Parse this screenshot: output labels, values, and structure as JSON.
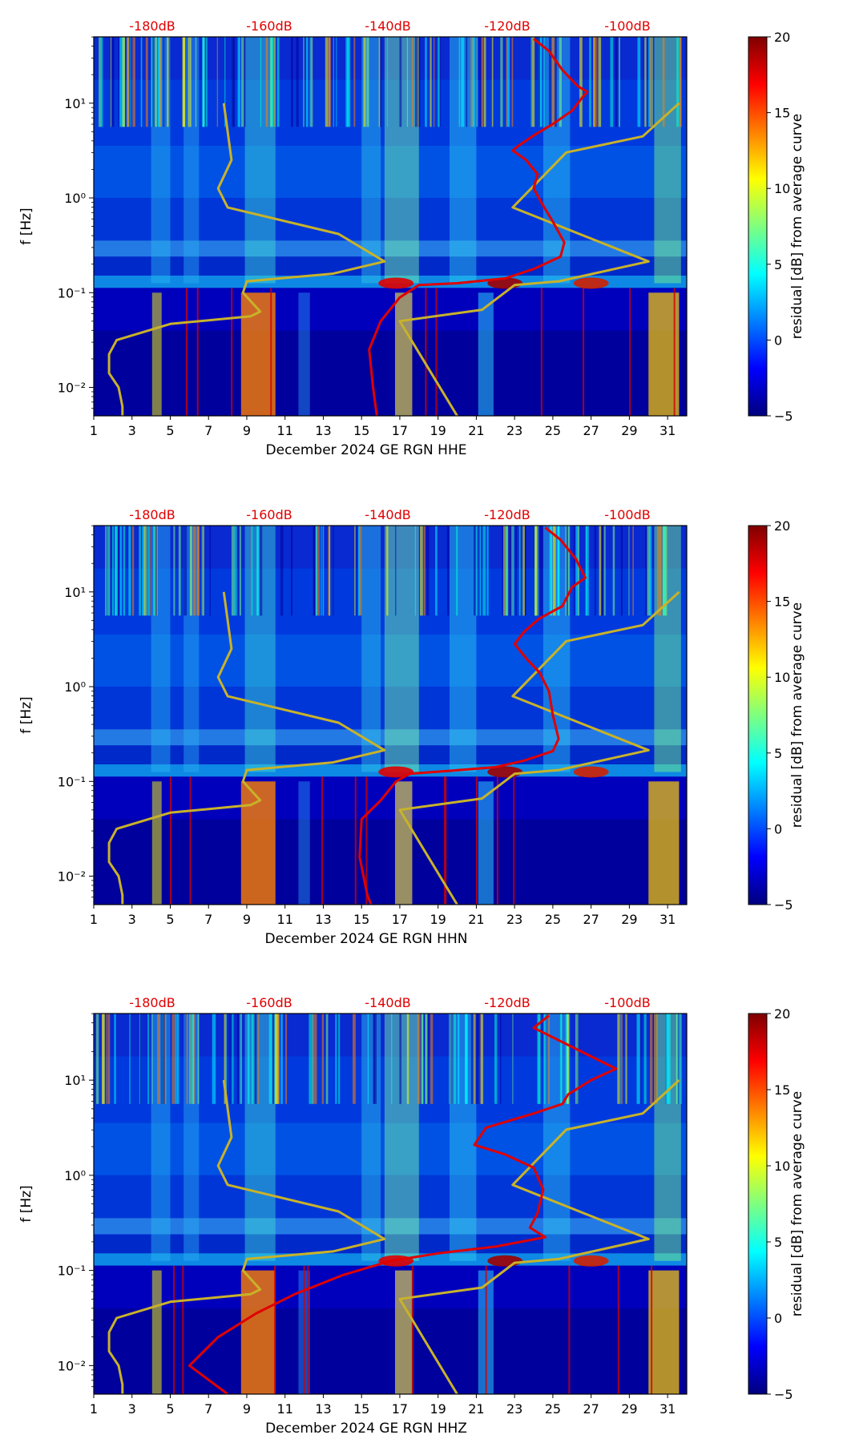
{
  "figure": {
    "colorbar_label": "residual [dB] from average curve",
    "colormap": [
      "#00007f",
      "#0000ff",
      "#007fff",
      "#00ffff",
      "#7fff7f",
      "#ffff00",
      "#ff7f00",
      "#ff0000",
      "#7f0000"
    ]
  },
  "chart_data": [
    {
      "type": "heatmap",
      "title": "",
      "xlabel": "December 2024 GE RGN  HHE",
      "ylabel": "f [Hz]",
      "x_ticks": [
        "1",
        "3",
        "5",
        "7",
        "9",
        "11",
        "13",
        "15",
        "17",
        "19",
        "21",
        "23",
        "25",
        "27",
        "29",
        "31"
      ],
      "y_ticks": [
        "10⁻²",
        "10⁻¹",
        "10⁰",
        "10¹"
      ],
      "top_axis_ticks": [
        "-180dB",
        "-160dB",
        "-140dB",
        "-120dB",
        "-100dB"
      ],
      "xlim": [
        1,
        32
      ],
      "ylim_log10": [
        -2.3,
        1.7
      ],
      "colorbar": {
        "min": -5,
        "max": 20,
        "ticks": [
          "20",
          "15",
          "10",
          "5",
          "0",
          "−5"
        ]
      },
      "series": [
        {
          "name": "noise model (yellow)",
          "color": "#c8b22a",
          "points": [
            [
              7.8,
              1.0
            ],
            [
              8.2,
              0.4
            ],
            [
              7.5,
              0.1
            ],
            [
              8.0,
              -0.1
            ],
            [
              13.8,
              -0.38
            ],
            [
              16.2,
              -0.67
            ],
            [
              13.5,
              -0.8
            ],
            [
              9.0,
              -0.88
            ],
            [
              8.8,
              -1.0
            ],
            [
              9.7,
              -1.2
            ],
            [
              9.2,
              -1.25
            ],
            [
              5.0,
              -1.33
            ],
            [
              2.2,
              -1.5
            ],
            [
              1.8,
              -1.65
            ],
            [
              1.8,
              -1.85
            ],
            [
              2.3,
              -2.0
            ],
            [
              2.5,
              -2.2
            ],
            [
              2.5,
              -2.3
            ]
          ]
        },
        {
          "name": "noise model (yellow)",
          "color": "#c8b22a",
          "points": [
            [
              31.6,
              1.0
            ],
            [
              29.7,
              0.65
            ],
            [
              25.7,
              0.48
            ],
            [
              22.9,
              -0.1
            ],
            [
              30.0,
              -0.67
            ],
            [
              25.3,
              -0.88
            ],
            [
              23.0,
              -0.92
            ],
            [
              21.3,
              -1.18
            ],
            [
              17.0,
              -1.3
            ],
            [
              20.0,
              -2.3
            ]
          ]
        },
        {
          "name": "median PSD (red)",
          "color": "#e00000",
          "points": [
            [
              24.0,
              1.68
            ],
            [
              24.8,
              1.55
            ],
            [
              25.5,
              1.35
            ],
            [
              26.3,
              1.18
            ],
            [
              26.8,
              1.12
            ],
            [
              26.5,
              1.05
            ],
            [
              26.0,
              0.92
            ],
            [
              25.0,
              0.78
            ],
            [
              24.0,
              0.66
            ],
            [
              23.2,
              0.55
            ],
            [
              22.9,
              0.5
            ],
            [
              23.6,
              0.4
            ],
            [
              24.2,
              0.25
            ],
            [
              24.0,
              0.1
            ],
            [
              24.4,
              -0.05
            ],
            [
              25.0,
              -0.25
            ],
            [
              25.6,
              -0.47
            ],
            [
              25.4,
              -0.62
            ],
            [
              24.0,
              -0.75
            ],
            [
              22.5,
              -0.85
            ],
            [
              20.0,
              -0.9
            ],
            [
              18.0,
              -0.92
            ],
            [
              17.0,
              -1.05
            ],
            [
              16.0,
              -1.3
            ],
            [
              15.4,
              -1.6
            ],
            [
              15.6,
              -2.0
            ],
            [
              15.8,
              -2.3
            ]
          ]
        }
      ]
    },
    {
      "type": "heatmap",
      "title": "",
      "xlabel": "December 2024 GE RGN  HHN",
      "ylabel": "f [Hz]",
      "x_ticks": [
        "1",
        "3",
        "5",
        "7",
        "9",
        "11",
        "13",
        "15",
        "17",
        "19",
        "21",
        "23",
        "25",
        "27",
        "29",
        "31"
      ],
      "y_ticks": [
        "10⁻²",
        "10⁻¹",
        "10⁰",
        "10¹"
      ],
      "top_axis_ticks": [
        "-180dB",
        "-160dB",
        "-140dB",
        "-120dB",
        "-100dB"
      ],
      "xlim": [
        1,
        32
      ],
      "ylim_log10": [
        -2.3,
        1.7
      ],
      "colorbar": {
        "min": -5,
        "max": 20,
        "ticks": [
          "20",
          "15",
          "10",
          "5",
          "0",
          "−5"
        ]
      },
      "series": [
        {
          "name": "noise model (yellow)",
          "color": "#c8b22a",
          "points": [
            [
              7.8,
              1.0
            ],
            [
              8.2,
              0.4
            ],
            [
              7.5,
              0.1
            ],
            [
              8.0,
              -0.1
            ],
            [
              13.8,
              -0.38
            ],
            [
              16.2,
              -0.67
            ],
            [
              13.5,
              -0.8
            ],
            [
              9.0,
              -0.88
            ],
            [
              8.8,
              -1.0
            ],
            [
              9.7,
              -1.2
            ],
            [
              9.2,
              -1.25
            ],
            [
              5.0,
              -1.33
            ],
            [
              2.2,
              -1.5
            ],
            [
              1.8,
              -1.65
            ],
            [
              1.8,
              -1.85
            ],
            [
              2.3,
              -2.0
            ],
            [
              2.5,
              -2.2
            ],
            [
              2.5,
              -2.3
            ]
          ]
        },
        {
          "name": "noise model (yellow)",
          "color": "#c8b22a",
          "points": [
            [
              31.6,
              1.0
            ],
            [
              29.7,
              0.65
            ],
            [
              25.7,
              0.48
            ],
            [
              22.9,
              -0.1
            ],
            [
              30.0,
              -0.67
            ],
            [
              25.3,
              -0.88
            ],
            [
              23.0,
              -0.92
            ],
            [
              21.3,
              -1.18
            ],
            [
              17.0,
              -1.3
            ],
            [
              20.0,
              -2.3
            ]
          ]
        },
        {
          "name": "median PSD (red)",
          "color": "#e00000",
          "points": [
            [
              24.6,
              1.68
            ],
            [
              25.4,
              1.55
            ],
            [
              26.2,
              1.35
            ],
            [
              26.7,
              1.15
            ],
            [
              26.0,
              1.05
            ],
            [
              25.5,
              0.85
            ],
            [
              24.3,
              0.72
            ],
            [
              23.5,
              0.58
            ],
            [
              23.0,
              0.45
            ],
            [
              23.6,
              0.3
            ],
            [
              24.3,
              0.15
            ],
            [
              24.8,
              -0.05
            ],
            [
              25.0,
              -0.3
            ],
            [
              25.3,
              -0.55
            ],
            [
              25.0,
              -0.68
            ],
            [
              23.5,
              -0.78
            ],
            [
              22.0,
              -0.85
            ],
            [
              19.5,
              -0.89
            ],
            [
              17.5,
              -0.92
            ],
            [
              16.8,
              -1.0
            ],
            [
              16.0,
              -1.2
            ],
            [
              15.0,
              -1.4
            ],
            [
              14.9,
              -1.8
            ],
            [
              15.3,
              -2.2
            ],
            [
              15.5,
              -2.3
            ]
          ]
        }
      ]
    },
    {
      "type": "heatmap",
      "title": "",
      "xlabel": "December 2024 GE RGN  HHZ",
      "ylabel": "f [Hz]",
      "x_ticks": [
        "1",
        "3",
        "5",
        "7",
        "9",
        "11",
        "13",
        "15",
        "17",
        "19",
        "21",
        "23",
        "25",
        "27",
        "29",
        "31"
      ],
      "y_ticks": [
        "10⁻²",
        "10⁻¹",
        "10⁰",
        "10¹"
      ],
      "top_axis_ticks": [
        "-180dB",
        "-160dB",
        "-140dB",
        "-120dB",
        "-100dB"
      ],
      "xlim": [
        1,
        32
      ],
      "ylim_log10": [
        -2.3,
        1.7
      ],
      "colorbar": {
        "min": -5,
        "max": 20,
        "ticks": [
          "20",
          "15",
          "10",
          "5",
          "0",
          "−5"
        ]
      },
      "series": [
        {
          "name": "noise model (yellow)",
          "color": "#c8b22a",
          "points": [
            [
              7.8,
              1.0
            ],
            [
              8.2,
              0.4
            ],
            [
              7.5,
              0.1
            ],
            [
              8.0,
              -0.1
            ],
            [
              13.8,
              -0.38
            ],
            [
              16.2,
              -0.67
            ],
            [
              13.5,
              -0.8
            ],
            [
              9.0,
              -0.88
            ],
            [
              8.8,
              -1.0
            ],
            [
              9.7,
              -1.2
            ],
            [
              9.2,
              -1.25
            ],
            [
              5.0,
              -1.33
            ],
            [
              2.2,
              -1.5
            ],
            [
              1.8,
              -1.65
            ],
            [
              1.8,
              -1.85
            ],
            [
              2.3,
              -2.0
            ],
            [
              2.5,
              -2.2
            ],
            [
              2.5,
              -2.3
            ]
          ]
        },
        {
          "name": "noise model (yellow)",
          "color": "#c8b22a",
          "points": [
            [
              31.6,
              1.0
            ],
            [
              29.7,
              0.65
            ],
            [
              25.7,
              0.48
            ],
            [
              22.9,
              -0.1
            ],
            [
              30.0,
              -0.67
            ],
            [
              25.3,
              -0.88
            ],
            [
              23.0,
              -0.92
            ],
            [
              21.3,
              -1.18
            ],
            [
              17.0,
              -1.3
            ],
            [
              20.0,
              -2.3
            ]
          ]
        },
        {
          "name": "median PSD (red)",
          "color": "#e00000",
          "points": [
            [
              24.8,
              1.68
            ],
            [
              24.0,
              1.55
            ],
            [
              26.0,
              1.35
            ],
            [
              28.3,
              1.12
            ],
            [
              27.0,
              1.0
            ],
            [
              25.8,
              0.85
            ],
            [
              25.5,
              0.75
            ],
            [
              24.0,
              0.65
            ],
            [
              21.5,
              0.5
            ],
            [
              20.9,
              0.32
            ],
            [
              22.5,
              0.22
            ],
            [
              24.0,
              0.08
            ],
            [
              24.5,
              -0.15
            ],
            [
              24.2,
              -0.4
            ],
            [
              23.8,
              -0.55
            ],
            [
              24.6,
              -0.65
            ],
            [
              22.0,
              -0.75
            ],
            [
              19.0,
              -0.82
            ],
            [
              16.5,
              -0.9
            ],
            [
              14.0,
              -1.05
            ],
            [
              11.5,
              -1.25
            ],
            [
              9.5,
              -1.45
            ],
            [
              7.5,
              -1.7
            ],
            [
              6.0,
              -2.0
            ],
            [
              7.0,
              -2.15
            ],
            [
              8.0,
              -2.3
            ]
          ]
        }
      ]
    }
  ]
}
